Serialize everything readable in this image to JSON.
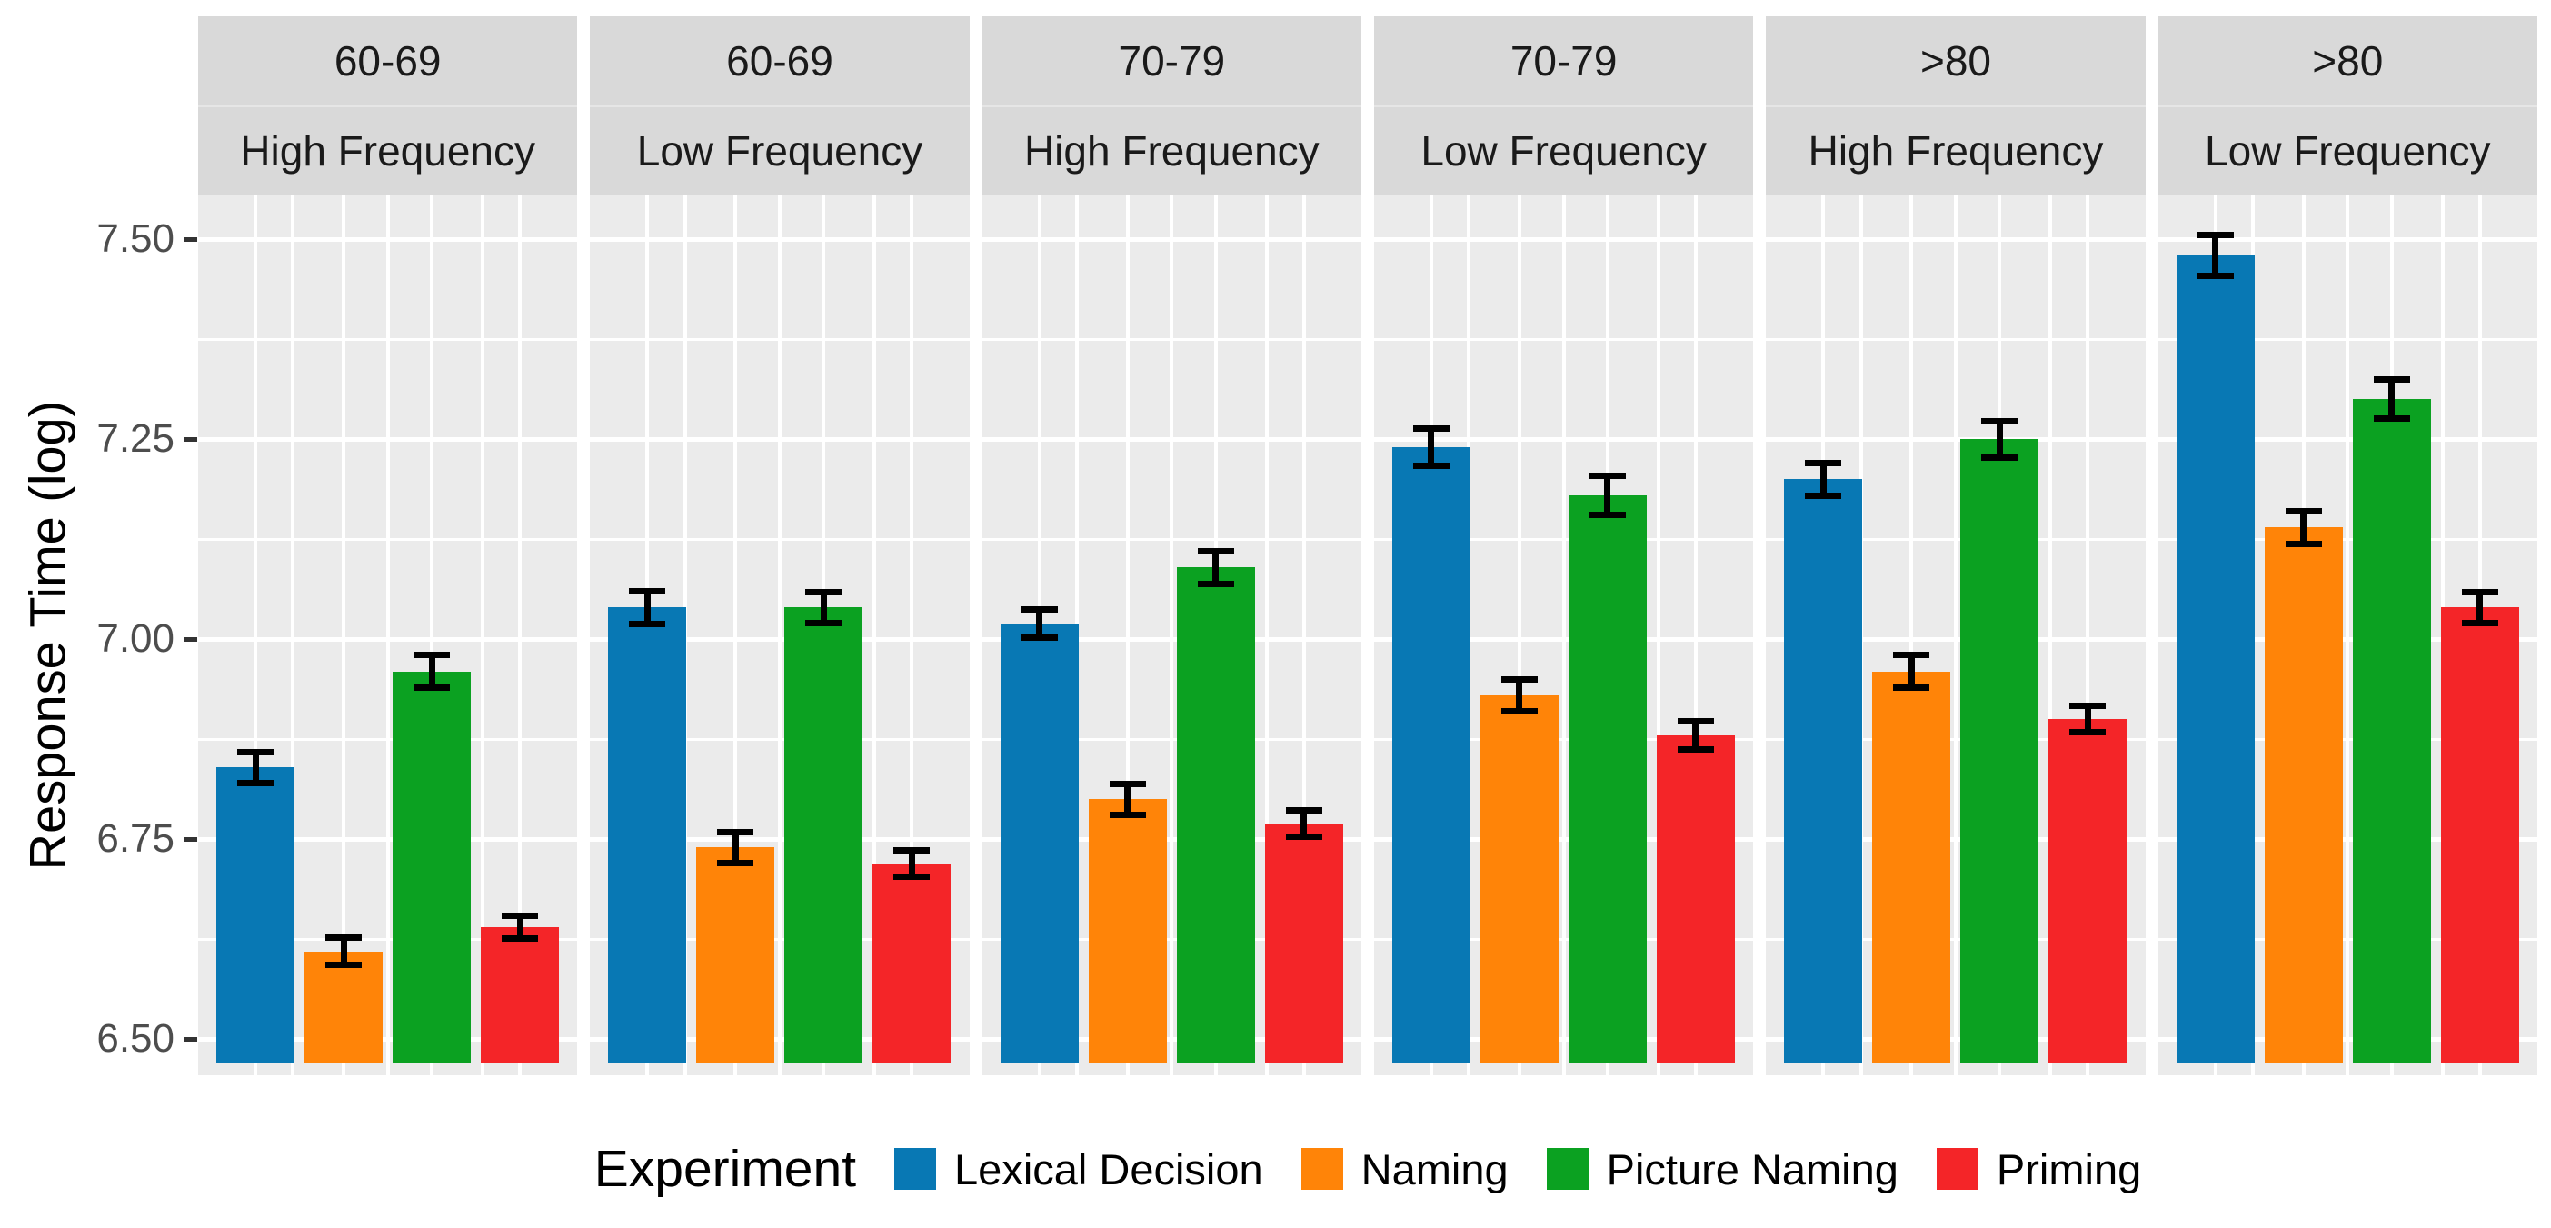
{
  "chart_data": {
    "type": "bar",
    "title": "",
    "ylabel": "Response Time (log)",
    "xlabel": "",
    "ylim": [
      6.455,
      7.555
    ],
    "y_ticks": [
      {
        "label": "7.50",
        "value": 7.5
      },
      {
        "label": "7.25",
        "value": 7.25
      },
      {
        "label": "7.00",
        "value": 7.0
      },
      {
        "label": "6.75",
        "value": 6.75
      },
      {
        "label": "6.50",
        "value": 6.5
      }
    ],
    "y_minor_gridlines": [
      7.375,
      7.125,
      6.875,
      6.625
    ],
    "grid": true,
    "error_bars": true,
    "facets": [
      {
        "age": "60-69",
        "frequency": "High Frequency"
      },
      {
        "age": "60-69",
        "frequency": "Low Frequency"
      },
      {
        "age": "70-79",
        "frequency": "High Frequency"
      },
      {
        "age": "70-79",
        "frequency": "Low Frequency"
      },
      {
        "age": ">80",
        "frequency": "High Frequency"
      },
      {
        "age": ">80",
        "frequency": "Low Frequency"
      }
    ],
    "series": [
      {
        "name": "Lexical Decision",
        "color": "#0878B4",
        "values": [
          6.84,
          7.04,
          7.02,
          7.24,
          7.2,
          7.48
        ],
        "errors": [
          0.02,
          0.021,
          0.018,
          0.024,
          0.021,
          0.026
        ]
      },
      {
        "name": "Naming",
        "color": "#FF8408",
        "values": [
          6.61,
          6.74,
          6.8,
          6.93,
          6.96,
          7.14
        ],
        "errors": [
          0.018,
          0.02,
          0.02,
          0.02,
          0.021,
          0.021
        ]
      },
      {
        "name": "Picture Naming",
        "color": "#0BA121",
        "values": [
          6.96,
          7.04,
          7.09,
          7.18,
          7.25,
          7.3
        ],
        "errors": [
          0.021,
          0.02,
          0.021,
          0.025,
          0.023,
          0.025
        ]
      },
      {
        "name": "Priming",
        "color": "#F42528",
        "values": [
          6.64,
          6.72,
          6.77,
          6.88,
          6.9,
          7.04
        ],
        "errors": [
          0.015,
          0.017,
          0.017,
          0.018,
          0.017,
          0.02
        ]
      }
    ],
    "legend": {
      "title": "Experiment",
      "position": "bottom",
      "entries": [
        "Lexical Decision",
        "Naming",
        "Picture Naming",
        "Priming"
      ]
    }
  },
  "styles": {
    "panel_background": "#EBEBEB",
    "strip_background": "#D9D9D9",
    "gridline_color": "#FFFFFF",
    "tick_label_color": "#4D4D4D",
    "axis_title_color": "#000000",
    "error_bar_color": "#000000"
  }
}
